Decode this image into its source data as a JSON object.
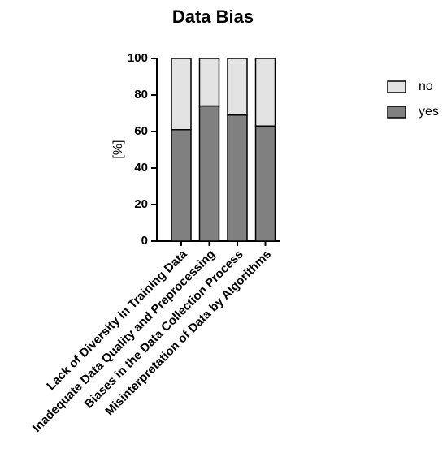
{
  "chart_data": {
    "type": "stacked_bar",
    "title": "Data Bias",
    "y_label": "[%]",
    "categories": [
      "Lack of Diversity in Training Data",
      "Inadequate Data Quality and Preprocessing",
      "Biases in the Data Collection Process",
      "Misinterpretation of Data by Algorithms"
    ],
    "series": [
      {
        "name": "yes",
        "color": "#808080",
        "values": [
          61,
          74,
          69,
          63
        ]
      },
      {
        "name": "no",
        "color": "#e3e3e3",
        "values": [
          39,
          26,
          31,
          37
        ]
      }
    ],
    "ylim": [
      0,
      100
    ],
    "yticks": [
      0,
      20,
      40,
      60,
      80,
      100
    ],
    "legend": "right"
  }
}
